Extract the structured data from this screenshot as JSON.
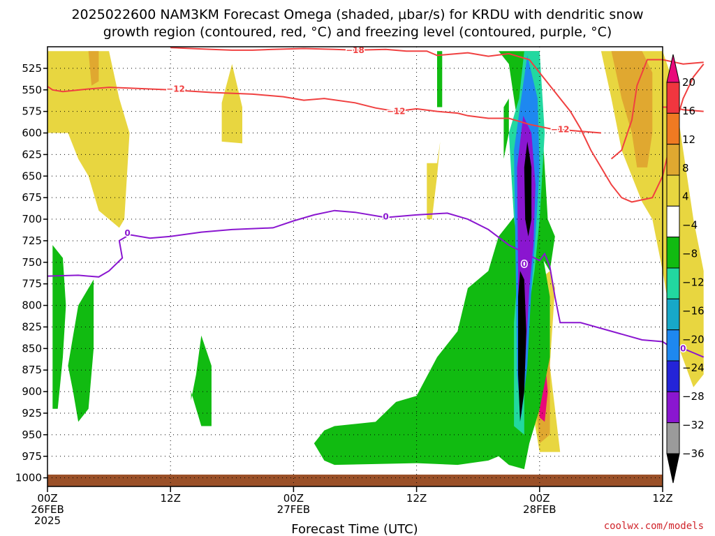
{
  "title": {
    "line1": "2025022600 NAM3KM Forecast Omega (shaded, μbar/s) for KRDU with dendritic snow",
    "line2": "growth region (contoured, red, °C) and freezing level (contoured, purple, °C)"
  },
  "credit": "coolwx.com/models",
  "chart_data": {
    "type": "time-height cross section",
    "xlabel": "Forecast Time (UTC)",
    "x_range_hours": [
      0,
      60
    ],
    "x_ticks": [
      {
        "hour": 0,
        "label": "00Z",
        "date": "26FEB",
        "year": "2025"
      },
      {
        "hour": 12,
        "label": "12Z",
        "date": "",
        "year": ""
      },
      {
        "hour": 24,
        "label": "00Z",
        "date": "27FEB",
        "year": ""
      },
      {
        "hour": 36,
        "label": "12Z",
        "date": "",
        "year": ""
      },
      {
        "hour": 48,
        "label": "00Z",
        "date": "28FEB",
        "year": ""
      },
      {
        "hour": 60,
        "label": "12Z",
        "date": "",
        "year": ""
      }
    ],
    "y_range_hpa": [
      500,
      1010
    ],
    "y_ticks": [
      525,
      550,
      575,
      600,
      625,
      650,
      675,
      700,
      725,
      750,
      775,
      800,
      825,
      850,
      875,
      900,
      925,
      950,
      975,
      1000
    ],
    "grid": true,
    "colorbar": {
      "unit": "μbar/s",
      "labels": [
        "20",
        "16",
        "12",
        "8",
        "4",
        "−4",
        "−8",
        "−12",
        "−16",
        "−20",
        "−24",
        "−28",
        "−32",
        "−36"
      ],
      "colors": [
        "#e8097a",
        "#f0363f",
        "#f07a22",
        "#e0a830",
        "#e8d640",
        "#ffffff",
        "#11bb11",
        "#22d8a0",
        "#17a8c8",
        "#1e88f0",
        "#2424d8",
        "#8a16d0",
        "#9b9b9b",
        "#000000"
      ]
    },
    "contours": {
      "dgz_minus12": {
        "label": "−12",
        "color": "#f04040",
        "points": [
          [
            0,
            546
          ],
          [
            0.5,
            550
          ],
          [
            1.5,
            552
          ],
          [
            4,
            549
          ],
          [
            6,
            547
          ],
          [
            8,
            548
          ],
          [
            12,
            550
          ],
          [
            16,
            553
          ],
          [
            20,
            555
          ],
          [
            23,
            558
          ],
          [
            25,
            562
          ],
          [
            27,
            560
          ],
          [
            30,
            565
          ],
          [
            32,
            571
          ],
          [
            34,
            575
          ],
          [
            36,
            572
          ],
          [
            38,
            575
          ],
          [
            40,
            577
          ],
          [
            41,
            580
          ],
          [
            43,
            583
          ],
          [
            45,
            583
          ],
          [
            47,
            590
          ],
          [
            49,
            595
          ],
          [
            52,
            598
          ],
          [
            54,
            600
          ]
        ]
      },
      "dgz_minus18": {
        "label": "−18",
        "color": "#f04040",
        "points": [
          [
            12,
            501
          ],
          [
            14,
            502
          ],
          [
            16,
            503
          ],
          [
            18,
            504
          ],
          [
            20,
            504
          ],
          [
            22,
            503
          ],
          [
            25,
            502
          ],
          [
            28,
            503
          ],
          [
            30,
            504
          ],
          [
            33,
            503
          ],
          [
            35,
            505
          ],
          [
            37,
            505
          ],
          [
            38,
            510
          ],
          [
            39,
            509
          ],
          [
            41,
            507
          ],
          [
            43,
            511
          ],
          [
            45,
            508
          ],
          [
            47,
            515
          ],
          [
            48,
            530
          ],
          [
            49,
            545
          ],
          [
            50,
            560
          ],
          [
            51,
            575
          ],
          [
            52,
            595
          ],
          [
            53,
            620
          ],
          [
            54,
            640
          ],
          [
            55,
            660
          ],
          [
            56,
            675
          ],
          [
            57,
            680
          ],
          [
            59,
            675
          ],
          [
            60,
            650
          ],
          [
            61,
            600
          ],
          [
            62,
            560
          ],
          [
            63,
            535
          ],
          [
            64,
            520
          ]
        ]
      },
      "dgz_east": {
        "label": "",
        "color": "#f04040",
        "points": [
          [
            55,
            630
          ],
          [
            56,
            620
          ],
          [
            57,
            585
          ],
          [
            57.5,
            545
          ],
          [
            58.5,
            515
          ],
          [
            60,
            515
          ],
          [
            62,
            520
          ],
          [
            64,
            518
          ]
        ]
      },
      "dgz_right": {
        "label": "",
        "color": "#f04040",
        "points": [
          [
            60,
            570
          ],
          [
            61,
            570
          ],
          [
            62,
            573
          ],
          [
            64,
            575
          ]
        ]
      },
      "freezing_level": {
        "label": "0",
        "color": "#8a16d0",
        "points": [
          [
            0,
            766
          ],
          [
            3,
            765
          ],
          [
            5,
            767
          ],
          [
            6,
            760
          ],
          [
            7.3,
            745
          ],
          [
            7,
            725
          ],
          [
            8,
            718
          ],
          [
            10,
            722
          ],
          [
            12,
            720
          ],
          [
            15,
            715
          ],
          [
            18,
            712
          ],
          [
            22,
            710
          ],
          [
            24,
            702
          ],
          [
            26,
            695
          ],
          [
            28,
            690
          ],
          [
            30,
            692
          ],
          [
            33,
            698
          ],
          [
            36,
            695
          ],
          [
            39,
            693
          ],
          [
            41,
            700
          ],
          [
            43,
            712
          ],
          [
            45,
            730
          ],
          [
            47,
            742
          ],
          [
            48,
            748
          ],
          [
            48.5,
            740
          ],
          [
            49,
            755
          ],
          [
            49.5,
            790
          ],
          [
            50,
            820
          ],
          [
            52,
            820
          ],
          [
            55,
            830
          ],
          [
            58,
            840
          ],
          [
            60,
            842
          ],
          [
            61,
            850
          ],
          [
            62,
            850
          ],
          [
            63,
            855
          ],
          [
            64,
            860
          ]
        ]
      }
    },
    "shading_regions": {
      "positive_yellow": [
        [
          [
            0,
            505
          ],
          [
            6,
            505
          ],
          [
            7,
            560
          ],
          [
            8,
            600
          ],
          [
            7.5,
            700
          ],
          [
            7,
            710
          ],
          [
            5,
            690
          ],
          [
            4,
            650
          ],
          [
            3,
            630
          ],
          [
            2,
            600
          ],
          [
            0,
            600
          ]
        ],
        [
          [
            17,
            610
          ],
          [
            19,
            612
          ],
          [
            19,
            570
          ],
          [
            18,
            520
          ],
          [
            17,
            565
          ]
        ],
        [
          [
            37,
            635
          ],
          [
            38,
            635
          ],
          [
            38.3,
            610
          ],
          [
            38,
            650
          ],
          [
            37.5,
            700
          ],
          [
            37,
            700
          ]
        ],
        [
          [
            54,
            505
          ],
          [
            60,
            505
          ],
          [
            61,
            540
          ],
          [
            62,
            620
          ],
          [
            63,
            700
          ],
          [
            64,
            760
          ],
          [
            64,
            880
          ],
          [
            63,
            895
          ],
          [
            61,
            830
          ],
          [
            60,
            760
          ],
          [
            59,
            700
          ],
          [
            58,
            680
          ],
          [
            57,
            650
          ],
          [
            56,
            620
          ],
          [
            55,
            560
          ]
        ],
        [
          [
            48,
            970
          ],
          [
            47,
            900
          ],
          [
            47,
            820
          ],
          [
            48,
            770
          ],
          [
            49,
            760
          ],
          [
            49.5,
            780
          ],
          [
            49,
            870
          ],
          [
            50,
            970
          ]
        ]
      ],
      "positive_orange": [
        [
          [
            4,
            505
          ],
          [
            5,
            505
          ],
          [
            5,
            540
          ],
          [
            4.3,
            545
          ]
        ],
        [
          [
            55,
            505
          ],
          [
            58,
            505
          ],
          [
            59,
            530
          ],
          [
            59,
            600
          ],
          [
            58.5,
            640
          ],
          [
            57.5,
            640
          ],
          [
            57,
            600
          ],
          [
            56,
            560
          ]
        ],
        [
          [
            48,
            960
          ],
          [
            47.5,
            900
          ],
          [
            47.5,
            830
          ],
          [
            48.5,
            790
          ],
          [
            49,
            830
          ],
          [
            49,
            950
          ]
        ]
      ],
      "positive_pink": [
        [
          [
            48,
            930
          ],
          [
            47.8,
            880
          ],
          [
            48.5,
            860
          ],
          [
            48.8,
            900
          ],
          [
            48.5,
            935
          ]
        ]
      ],
      "negative_green": [
        [
          [
            0.5,
            730
          ],
          [
            1.5,
            745
          ],
          [
            1.8,
            800
          ],
          [
            1.5,
            860
          ],
          [
            1,
            920
          ],
          [
            0.5,
            920
          ]
        ],
        [
          [
            2,
            870
          ],
          [
            3,
            800
          ],
          [
            4.5,
            770
          ],
          [
            4.5,
            850
          ],
          [
            4,
            920
          ],
          [
            3,
            935
          ],
          [
            2.5,
            900
          ]
        ],
        [
          [
            14,
            910
          ],
          [
            14.5,
            880
          ],
          [
            15,
            835
          ],
          [
            16,
            870
          ],
          [
            16,
            940
          ],
          [
            15,
            940
          ],
          [
            14,
            900
          ]
        ],
        [
          [
            26,
            960
          ],
          [
            27,
            945
          ],
          [
            28,
            940
          ],
          [
            32,
            935
          ],
          [
            34,
            912
          ],
          [
            36,
            905
          ],
          [
            38,
            860
          ],
          [
            40,
            830
          ],
          [
            41,
            780
          ],
          [
            43,
            760
          ],
          [
            44,
            720
          ],
          [
            45,
            705
          ],
          [
            46,
            690
          ],
          [
            47,
            700
          ],
          [
            48,
            720
          ],
          [
            49,
            790
          ],
          [
            49,
            860
          ],
          [
            48,
            920
          ],
          [
            47,
            960
          ],
          [
            46.5,
            990
          ],
          [
            45,
            985
          ],
          [
            44,
            975
          ],
          [
            43,
            980
          ],
          [
            40,
            985
          ],
          [
            36,
            983
          ],
          [
            32,
            984
          ],
          [
            28,
            985
          ],
          [
            27,
            980
          ]
        ],
        [
          [
            38,
            505
          ],
          [
            38.5,
            505
          ],
          [
            38.5,
            570
          ],
          [
            38,
            570
          ]
        ],
        [
          [
            44,
            505
          ],
          [
            48,
            505
          ],
          [
            48.3,
            600
          ],
          [
            48.8,
            700
          ],
          [
            49.5,
            720
          ],
          [
            49,
            760
          ],
          [
            48,
            740
          ],
          [
            47,
            690
          ],
          [
            46,
            600
          ],
          [
            45.5,
            560
          ],
          [
            45,
            520
          ]
        ],
        [
          [
            44.5,
            570
          ],
          [
            45,
            560
          ],
          [
            45,
            600
          ],
          [
            44.5,
            630
          ]
        ]
      ],
      "negative_cyan": [
        [
          [
            45,
            600
          ],
          [
            46,
            560
          ],
          [
            46.5,
            505
          ],
          [
            48,
            505
          ],
          [
            48.5,
            600
          ],
          [
            48,
            700
          ],
          [
            47.5,
            760
          ],
          [
            47,
            800
          ],
          [
            46.5,
            880
          ],
          [
            46.5,
            950
          ],
          [
            45.5,
            940
          ],
          [
            45.5,
            820
          ],
          [
            46,
            740
          ],
          [
            45.5,
            700
          ]
        ]
      ],
      "negative_blue": [
        [
          [
            45.5,
            620
          ],
          [
            46.2,
            560
          ],
          [
            46.8,
            510
          ],
          [
            47.8,
            560
          ],
          [
            48,
            640
          ],
          [
            47.6,
            720
          ],
          [
            47.2,
            780
          ],
          [
            46.8,
            870
          ],
          [
            46.2,
            930
          ],
          [
            45.8,
            880
          ],
          [
            45.7,
            780
          ]
        ]
      ],
      "negative_purple": [
        [
          [
            45.8,
            640
          ],
          [
            46.4,
            580
          ],
          [
            47.2,
            600
          ],
          [
            47.6,
            660
          ],
          [
            47.4,
            730
          ],
          [
            47,
            780
          ],
          [
            46.6,
            870
          ],
          [
            46.1,
            920
          ],
          [
            45.9,
            860
          ],
          [
            45.9,
            760
          ]
        ]
      ],
      "negative_black": [
        [
          [
            46.5,
            640
          ],
          [
            46.8,
            610
          ],
          [
            47.2,
            640
          ],
          [
            47.2,
            700
          ],
          [
            46.9,
            720
          ],
          [
            46.6,
            700
          ]
        ],
        [
          [
            45.9,
            790
          ],
          [
            46.1,
            760
          ],
          [
            46.5,
            770
          ],
          [
            46.7,
            830
          ],
          [
            46.5,
            900
          ],
          [
            46.1,
            935
          ],
          [
            45.9,
            880
          ]
        ]
      ]
    }
  }
}
